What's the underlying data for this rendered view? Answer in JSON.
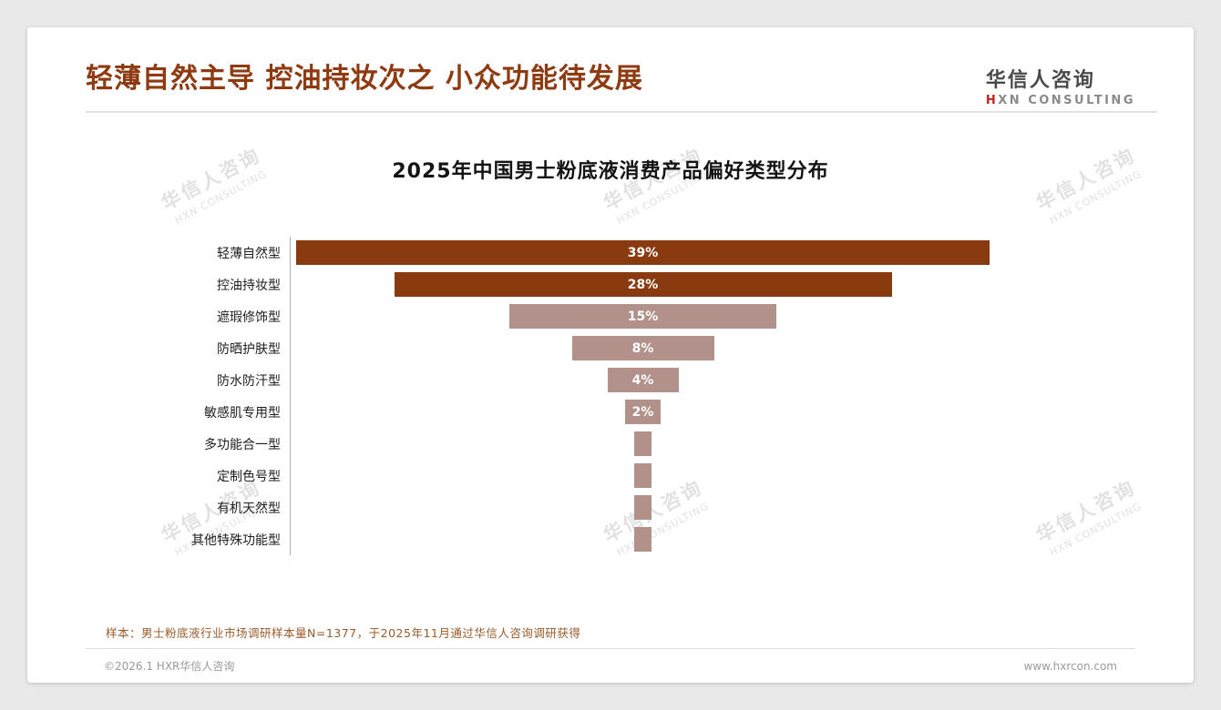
{
  "page": {
    "header_title": "轻薄自然主导 控油持妆次之 小众功能待发展",
    "logo": {
      "name": "华信人咨询",
      "sub": "HXN CONSULTING"
    },
    "note": "样本：男士粉底液行业市场调研样本量N=1377，于2025年11月通过华信人咨询调研获得",
    "footer_left": "©2026.1 HXR华信人咨询",
    "footer_right": "www.hxrcon.com",
    "watermark_line1": "华信人咨询",
    "watermark_line2": "HXN CONSULTING"
  },
  "chart_data": {
    "type": "bar",
    "orientation": "horizontal",
    "layout": "centered-funnel",
    "title": "2025年中国男士粉底液消费产品偏好类型分布",
    "categories": [
      "轻薄自然型",
      "控油持妆型",
      "遮瑕修饰型",
      "防晒护肤型",
      "防水防汗型",
      "敏感肌专用型",
      "多功能合一型",
      "定制色号型",
      "有机天然型",
      "其他特殊功能型"
    ],
    "values": [
      39,
      28,
      15,
      8,
      4,
      2,
      1,
      1,
      1,
      1
    ],
    "bar_labels": [
      "39%",
      "28%",
      "15%",
      "8%",
      "4%",
      "2%",
      "",
      "",
      "",
      ""
    ],
    "unit": "%",
    "xlim": [
      0,
      40
    ],
    "colors": {
      "primary": "#8A3A0F",
      "secondary": "#B2918A"
    },
    "primary_count": 2,
    "grid": false,
    "legend": "none"
  }
}
